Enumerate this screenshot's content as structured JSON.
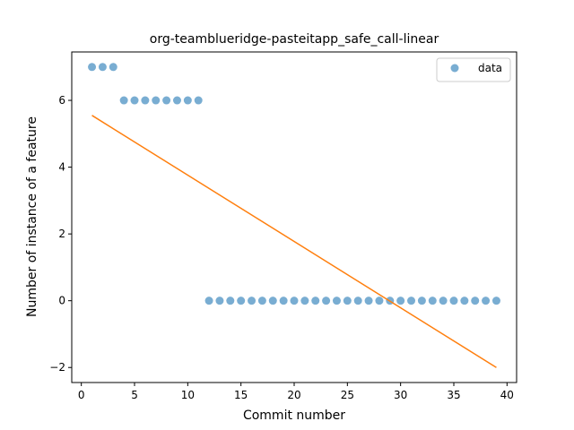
{
  "chart_data": {
    "type": "scatter",
    "title": "org-teamblueridge-pasteitapp_safe_call-linear",
    "xlabel": "Commit number",
    "ylabel": "Number of instance of a feature",
    "xlim": [
      -0.9,
      40.9
    ],
    "ylim": [
      -2.45,
      7.45
    ],
    "xticks": [
      0,
      5,
      10,
      15,
      20,
      25,
      30,
      35,
      40
    ],
    "xtick_labels": [
      "0",
      "5",
      "10",
      "15",
      "20",
      "25",
      "30",
      "35",
      "40"
    ],
    "yticks": [
      -2,
      0,
      2,
      4,
      6
    ],
    "ytick_labels": [
      "−2",
      "0",
      "2",
      "4",
      "6"
    ],
    "grid": false,
    "legend": {
      "position": "top-right",
      "entries": [
        "data"
      ]
    },
    "colors": {
      "scatter": "#1f77b4",
      "fit": "#ff7f0e"
    },
    "series": [
      {
        "name": "data",
        "kind": "scatter",
        "x": [
          1,
          2,
          3,
          4,
          5,
          6,
          7,
          8,
          9,
          10,
          11,
          12,
          13,
          14,
          15,
          16,
          17,
          18,
          19,
          20,
          21,
          22,
          23,
          24,
          25,
          26,
          27,
          28,
          29,
          30,
          31,
          32,
          33,
          34,
          35,
          36,
          37,
          38,
          39
        ],
        "y": [
          7,
          7,
          7,
          6,
          6,
          6,
          6,
          6,
          6,
          6,
          6,
          0,
          0,
          0,
          0,
          0,
          0,
          0,
          0,
          0,
          0,
          0,
          0,
          0,
          0,
          0,
          0,
          0,
          0,
          0,
          0,
          0,
          0,
          0,
          0,
          0,
          0,
          0,
          0
        ]
      },
      {
        "kind": "line",
        "x": [
          1,
          39
        ],
        "y": [
          5.55,
          -2.0
        ]
      }
    ]
  }
}
